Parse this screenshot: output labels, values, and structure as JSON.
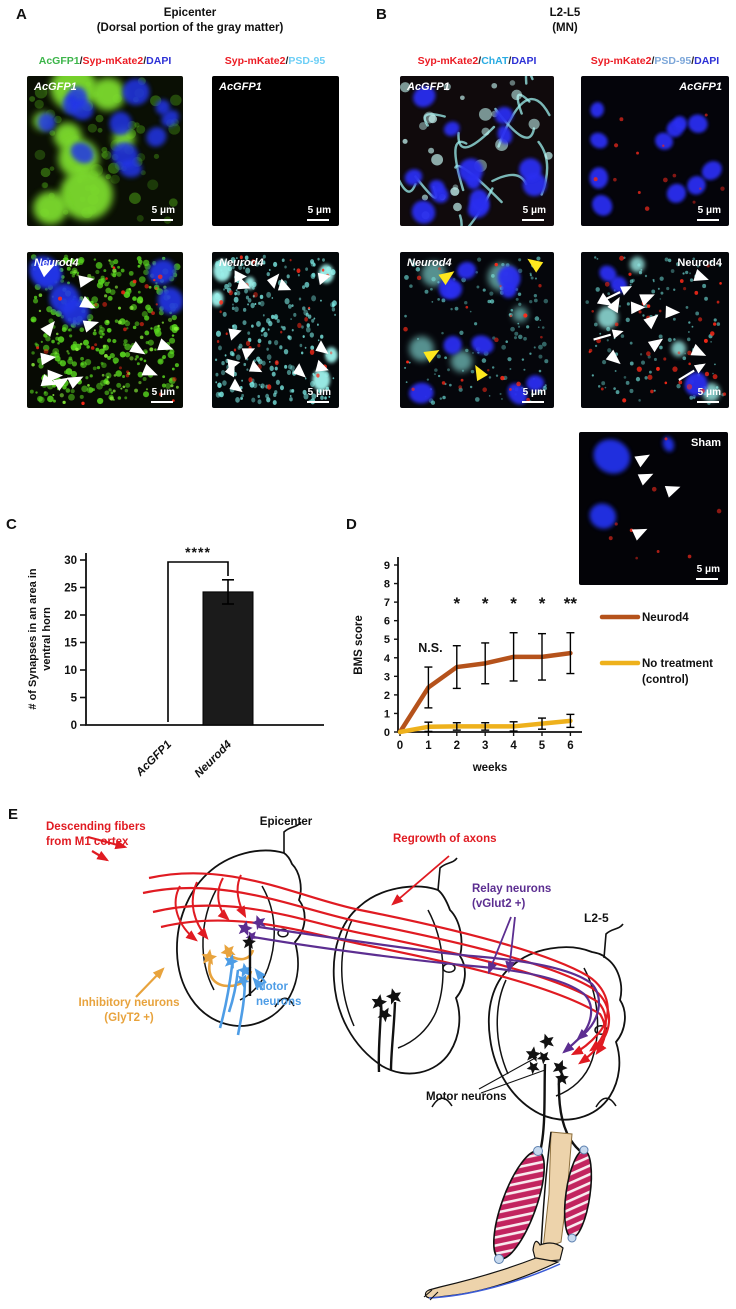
{
  "scale_bar": "5 μm",
  "colors": {
    "acgfp1_green": "#3cb54a",
    "mkate_red": "#ec1c24",
    "dapi_blue": "#2d31d6",
    "chat_cyan": "#29abe2",
    "psd95_lightblue": "#6dcff6",
    "psd95_lightblue_b": "#7da7d9",
    "neurod4_line": "#b5521b",
    "control_line": "#eeb11c",
    "diagram_red": "#e01b22",
    "diagram_purple": "#5c2e91",
    "diagram_gold": "#e8a33d",
    "diagram_blue": "#4e9de6"
  },
  "panelA": {
    "label": "A",
    "title_line1": "Epicenter",
    "title_line2": "(Dorsal portion of the gray matter)",
    "col_labels": [
      {
        "parts": [
          {
            "t": "AcGFP1",
            "c": "#3cb54a"
          },
          {
            "t": "/",
            "c": "#231f20"
          },
          {
            "t": "Syp-mKate2",
            "c": "#ec1c24"
          },
          {
            "t": "/",
            "c": "#231f20"
          },
          {
            "t": "DAPI",
            "c": "#2d31d6"
          }
        ]
      },
      {
        "parts": [
          {
            "t": "Syp-mKate2",
            "c": "#ec1c24"
          },
          {
            "t": "/",
            "c": "#231f20"
          },
          {
            "t": "PSD-95",
            "c": "#6dcff6"
          }
        ]
      }
    ],
    "tiles": [
      {
        "label": "AcGFP1",
        "italic": true
      },
      {
        "label": "AcGFP1",
        "italic": true
      },
      {
        "label": "Neurod4",
        "italic": true
      },
      {
        "label": "Neurod4",
        "italic": true
      }
    ]
  },
  "panelB": {
    "label": "B",
    "title_line1": "L2-L5",
    "title_line2": "(MN)",
    "col_labels": [
      {
        "parts": [
          {
            "t": "Syp-mKate2",
            "c": "#ec1c24"
          },
          {
            "t": "/",
            "c": "#231f20"
          },
          {
            "t": "ChAT",
            "c": "#29abe2"
          },
          {
            "t": "/",
            "c": "#231f20"
          },
          {
            "t": "DAPI",
            "c": "#2d31d6"
          }
        ]
      },
      {
        "parts": [
          {
            "t": "Syp-mKate2",
            "c": "#ec1c24"
          },
          {
            "t": "/",
            "c": "#231f20"
          },
          {
            "t": "PSD-95",
            "c": "#7da7d9"
          },
          {
            "t": "/",
            "c": "#231f20"
          },
          {
            "t": "DAPI",
            "c": "#2d31d6"
          }
        ]
      }
    ],
    "tiles": [
      {
        "label": "AcGFP1",
        "italic": true
      },
      {
        "label": "AcGFP1",
        "italic": true
      },
      {
        "label": "Neurod4",
        "italic": true
      },
      {
        "label": "Neurod4",
        "italic": false
      },
      {
        "label": "Sham",
        "italic": false
      }
    ]
  },
  "panelC": {
    "label": "C"
  },
  "panelD": {
    "label": "D"
  },
  "panelE": {
    "label": "E",
    "labels": {
      "descending": [
        "Descending fibers",
        "from M1 cortex"
      ],
      "epicenter": "Epicenter",
      "regrowth": "Regrowth of axons",
      "relay": [
        "Relay neurons",
        "(vGlut2 +)"
      ],
      "l25": "L2-5",
      "inhibitory": [
        "Inhibitory neurons",
        "(GlyT2 +)"
      ],
      "motor_blue": [
        "Motor",
        "neurons"
      ],
      "motor_black": "Motor neurons"
    }
  },
  "chart_data": [
    {
      "panel": "C",
      "type": "bar",
      "categories": [
        "AcGFP1",
        "Neurod4"
      ],
      "values": [
        0,
        24.2
      ],
      "errors": [
        0,
        2.2
      ],
      "ylabel": "# of Synapses in an area in ventral horn",
      "ylabel_lines": [
        "# of Synapses in an area in",
        "ventral horn"
      ],
      "ylim": [
        0,
        30
      ],
      "yticks": [
        0,
        5,
        10,
        15,
        20,
        25,
        30
      ],
      "significance": "****",
      "bar_color": "#1b1b1b",
      "grid": false
    },
    {
      "panel": "D",
      "type": "line",
      "x": [
        0,
        1,
        2,
        3,
        4,
        5,
        6
      ],
      "xlabel": "weeks",
      "ylabel": "BMS score",
      "ylim": [
        0,
        9
      ],
      "yticks": [
        0,
        1,
        2,
        3,
        4,
        5,
        6,
        7,
        8,
        9
      ],
      "series": [
        {
          "name": "Neurod4",
          "color": "#b5521b",
          "values": [
            0,
            2.4,
            3.5,
            3.7,
            4.05,
            4.05,
            4.25
          ],
          "errors": [
            0,
            1.1,
            1.15,
            1.1,
            1.3,
            1.25,
            1.1
          ]
        },
        {
          "name": "No treatment (control)",
          "color": "#eeb11c",
          "values": [
            0,
            0.28,
            0.3,
            0.3,
            0.3,
            0.45,
            0.6
          ],
          "errors": [
            0,
            0.25,
            0.2,
            0.2,
            0.25,
            0.3,
            0.35
          ]
        }
      ],
      "annotations": [
        {
          "x": 1,
          "text": "N.S."
        },
        {
          "x": 2,
          "text": "*"
        },
        {
          "x": 3,
          "text": "*"
        },
        {
          "x": 4,
          "text": "*"
        },
        {
          "x": 5,
          "text": "*"
        },
        {
          "x": 6,
          "text": "**"
        }
      ],
      "legend": [
        {
          "lines": [
            "Neurod4"
          ],
          "color": "#b5521b"
        },
        {
          "lines": [
            "No treatment",
            "(control)"
          ],
          "color": "#eeb11c"
        }
      ],
      "legend_position": "right",
      "grid": false
    }
  ]
}
